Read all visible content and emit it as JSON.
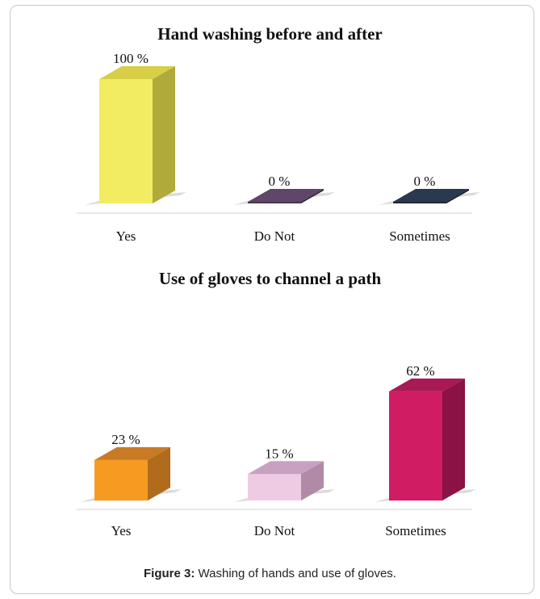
{
  "caption": {
    "label": "Figure 3:",
    "text": " Washing of hands and use of gloves."
  },
  "chart_data": [
    {
      "type": "bar",
      "title": "Hand washing before and after",
      "categories": [
        "Yes",
        "Do Not",
        "Sometimes"
      ],
      "values": [
        100,
        0,
        0
      ],
      "value_labels": [
        "100 %",
        "0 %",
        "0 %"
      ],
      "colors": [
        "#f2ec62",
        "#4a3650",
        "#1e2a3c"
      ],
      "side_colors": [
        "#b0aa3a",
        "#2e2034",
        "#121a26"
      ],
      "top_colors": [
        "#d7cf45",
        "#5f4768",
        "#2a3850"
      ],
      "ylim": [
        0,
        100
      ],
      "grid": false,
      "style": "3d-column"
    },
    {
      "type": "bar",
      "title": "Use of gloves to channel a path",
      "categories": [
        "Yes",
        "Do Not",
        "Sometimes"
      ],
      "values": [
        23,
        15,
        62
      ],
      "value_labels": [
        "23 %",
        "15 %",
        "62 %"
      ],
      "colors": [
        "#f79a21",
        "#efcbe3",
        "#cf1c62"
      ],
      "side_colors": [
        "#b06b1c",
        "#b08aa6",
        "#8a1244"
      ],
      "top_colors": [
        "#c97a24",
        "#c9a0c2",
        "#a91a55"
      ],
      "ylim": [
        0,
        100
      ],
      "grid": false,
      "style": "3d-column"
    }
  ]
}
